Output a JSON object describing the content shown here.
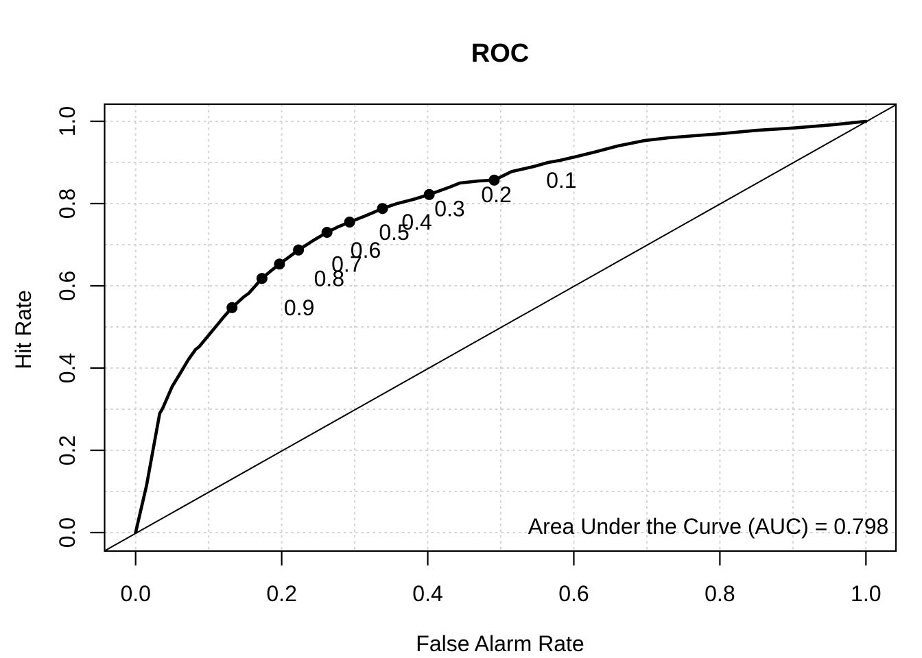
{
  "figure": {
    "background_color": "#ffffff",
    "foreground_color": "#000000"
  },
  "chart_data": {
    "type": "line",
    "title": "ROC",
    "xlabel": "False Alarm Rate",
    "ylabel": "Hit Rate",
    "xlim": [
      -0.043,
      1.041
    ],
    "ylim": [
      -0.045,
      1.04
    ],
    "x_tick_values": [
      0.0,
      0.2,
      0.4,
      0.6,
      0.8,
      1.0
    ],
    "x_tick_labels": [
      "0.0",
      "0.2",
      "0.4",
      "0.6",
      "0.8",
      "1.0"
    ],
    "y_tick_values": [
      0.0,
      0.2,
      0.4,
      0.6,
      0.8,
      1.0
    ],
    "y_tick_labels": [
      "0.0",
      "0.2",
      "0.4",
      "0.6",
      "0.8",
      "1.0"
    ],
    "grid": {
      "show": true,
      "step": 0.1,
      "values": [
        0.0,
        0.1,
        0.2,
        0.3,
        0.4,
        0.5,
        0.6,
        0.7,
        0.8,
        0.9,
        1.0
      ],
      "color": "#d3d3d3",
      "line_style": "dotted"
    },
    "legend_position": "none",
    "series": [
      {
        "name": "ROC curve",
        "color": "#000000",
        "width": 4.6,
        "points": [
          [
            0.0,
            0.0
          ],
          [
            0.015,
            0.115
          ],
          [
            0.033,
            0.29
          ],
          [
            0.037,
            0.302
          ],
          [
            0.05,
            0.355
          ],
          [
            0.062,
            0.39
          ],
          [
            0.072,
            0.42
          ],
          [
            0.082,
            0.445
          ],
          [
            0.087,
            0.452
          ],
          [
            0.101,
            0.482
          ],
          [
            0.115,
            0.512
          ],
          [
            0.12,
            0.523
          ],
          [
            0.132,
            0.547
          ],
          [
            0.148,
            0.573
          ],
          [
            0.155,
            0.582
          ],
          [
            0.173,
            0.618
          ],
          [
            0.185,
            0.636
          ],
          [
            0.197,
            0.653
          ],
          [
            0.21,
            0.67
          ],
          [
            0.223,
            0.687
          ],
          [
            0.243,
            0.71
          ],
          [
            0.262,
            0.73
          ],
          [
            0.278,
            0.744
          ],
          [
            0.293,
            0.755
          ],
          [
            0.313,
            0.769
          ],
          [
            0.325,
            0.778
          ],
          [
            0.338,
            0.788
          ],
          [
            0.358,
            0.8
          ],
          [
            0.38,
            0.81
          ],
          [
            0.402,
            0.822
          ],
          [
            0.43,
            0.84
          ],
          [
            0.444,
            0.85
          ],
          [
            0.47,
            0.855
          ],
          [
            0.491,
            0.857
          ],
          [
            0.515,
            0.878
          ],
          [
            0.545,
            0.89
          ],
          [
            0.565,
            0.9
          ],
          [
            0.581,
            0.905
          ],
          [
            0.605,
            0.915
          ],
          [
            0.628,
            0.925
          ],
          [
            0.66,
            0.94
          ],
          [
            0.696,
            0.953
          ],
          [
            0.73,
            0.96
          ],
          [
            0.765,
            0.965
          ],
          [
            0.802,
            0.97
          ],
          [
            0.85,
            0.978
          ],
          [
            0.903,
            0.984
          ],
          [
            0.957,
            0.992
          ],
          [
            1.0,
            1.0
          ]
        ]
      },
      {
        "name": "chance diagonal",
        "color": "#000000",
        "width": 2,
        "points": [
          [
            -0.043,
            -0.045
          ],
          [
            1.041,
            1.04
          ]
        ]
      }
    ],
    "threshold_points": [
      {
        "label": "0.9",
        "x": 0.132,
        "y": 0.547
      },
      {
        "label": "0.8",
        "x": 0.173,
        "y": 0.618
      },
      {
        "label": "0.7",
        "x": 0.197,
        "y": 0.653
      },
      {
        "label": "0.6",
        "x": 0.223,
        "y": 0.687
      },
      {
        "label": "0.5",
        "x": 0.262,
        "y": 0.73
      },
      {
        "label": "0.4",
        "x": 0.293,
        "y": 0.755
      },
      {
        "label": "0.3",
        "x": 0.338,
        "y": 0.788
      },
      {
        "label": "0.2",
        "x": 0.402,
        "y": 0.822
      },
      {
        "label": "0.1",
        "x": 0.491,
        "y": 0.857
      }
    ],
    "threshold_label_offset_x": 0.092,
    "point_radius": 8,
    "annotation": {
      "text": "Area Under the Curve (AUC) = 0.798",
      "x": 1.031,
      "y": -0.003,
      "anchor": "end"
    },
    "auc": 0.798
  }
}
